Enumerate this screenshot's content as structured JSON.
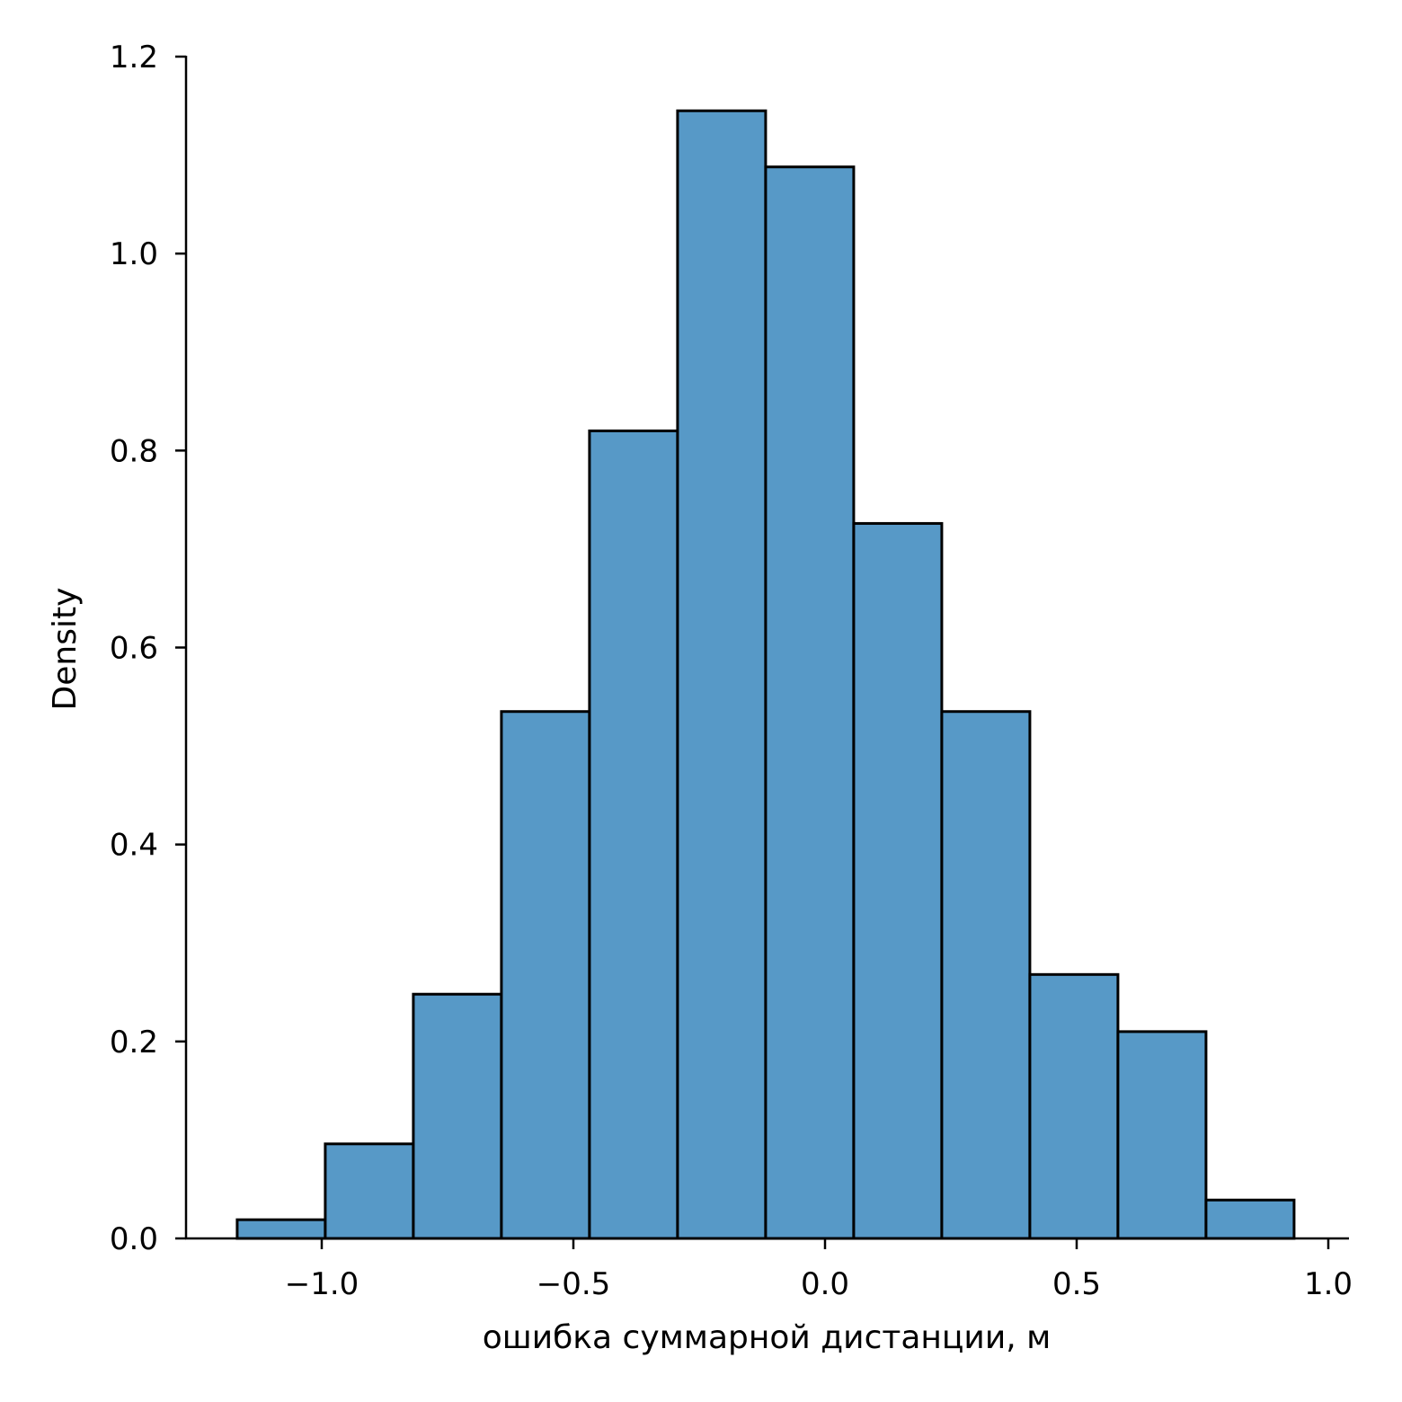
{
  "chart_data": {
    "type": "bar",
    "subtype": "histogram",
    "title": "",
    "xlabel": "ошибка суммарной дистанции, м",
    "ylabel": "Density",
    "xlim": [
      -1.27,
      1.04
    ],
    "ylim": [
      0,
      1.2
    ],
    "xticks": [
      -1.0,
      -0.5,
      0.0,
      0.5,
      1.0
    ],
    "xtick_labels": [
      "−1.0",
      "−0.5",
      "0.0",
      "0.5",
      "1.0"
    ],
    "yticks": [
      0.0,
      0.2,
      0.4,
      0.6,
      0.8,
      1.0,
      1.2
    ],
    "ytick_labels": [
      "0.0",
      "0.2",
      "0.4",
      "0.6",
      "0.8",
      "1.0",
      "1.2"
    ],
    "bin_edges": [
      -1.168,
      -0.993,
      -0.818,
      -0.643,
      -0.468,
      -0.293,
      -0.118,
      0.057,
      0.232,
      0.407,
      0.582,
      0.757,
      0.932
    ],
    "values": [
      0.019,
      0.096,
      0.248,
      0.535,
      0.82,
      1.145,
      1.088,
      0.726,
      0.535,
      0.268,
      0.21,
      0.039
    ],
    "bar_color": "#5799c7",
    "edge_color": "#000000",
    "grid": false,
    "legend": "none"
  }
}
